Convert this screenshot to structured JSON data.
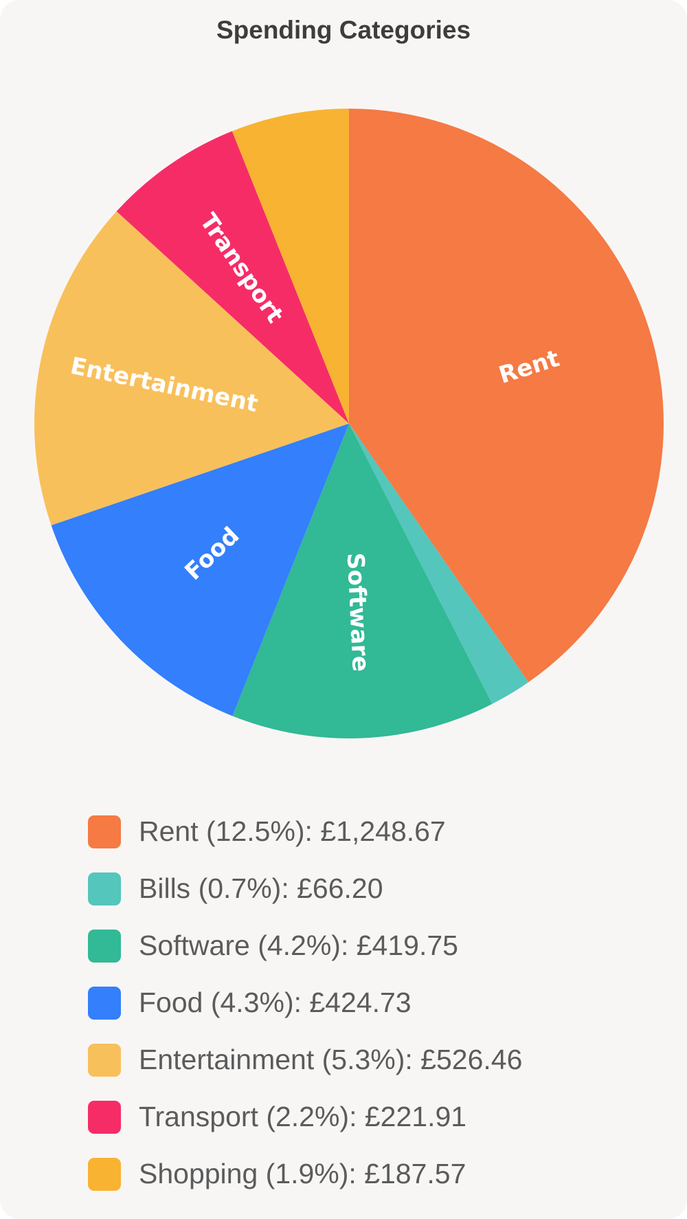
{
  "chart_data": {
    "type": "pie",
    "title": "Spending Categories",
    "slices": [
      {
        "name": "Rent",
        "value": 1248.67,
        "percent_label": "12.5%",
        "amount_label": "£1,248.67",
        "color": "#f57a44",
        "slice_label": "Rent",
        "legend_label": "Rent (12.5%): £1,248.67"
      },
      {
        "name": "Bills",
        "value": 66.2,
        "percent_label": "0.7%",
        "amount_label": "£66.20",
        "color": "#54c6bc",
        "slice_label": "",
        "legend_label": "Bills (0.7%): £66.20"
      },
      {
        "name": "Software",
        "value": 419.75,
        "percent_label": "4.2%",
        "amount_label": "£419.75",
        "color": "#32b996",
        "slice_label": "Software",
        "legend_label": "Software (4.2%): £419.75"
      },
      {
        "name": "Food",
        "value": 424.73,
        "percent_label": "4.3%",
        "amount_label": "£424.73",
        "color": "#337ffc",
        "slice_label": "Food",
        "legend_label": "Food (4.3%): £424.73"
      },
      {
        "name": "Entertainment",
        "value": 526.46,
        "percent_label": "5.3%",
        "amount_label": "£526.46",
        "color": "#f8c05b",
        "slice_label": "Entertainment",
        "legend_label": "Entertainment (5.3%): £526.46"
      },
      {
        "name": "Transport",
        "value": 221.91,
        "percent_label": "2.2%",
        "amount_label": "£221.91",
        "color": "#f62c67",
        "slice_label": "Transport",
        "legend_label": "Transport (2.2%): £221.91"
      },
      {
        "name": "Shopping",
        "value": 187.57,
        "percent_label": "1.9%",
        "amount_label": "£187.57",
        "color": "#f8b332",
        "slice_label": "",
        "legend_label": "Shopping (1.9%): £187.57"
      }
    ],
    "legend_position": "bottom",
    "start_angle": "12 o'clock",
    "direction": "clockwise"
  },
  "colors": {
    "card_background": "#f8f6f5",
    "title_text": "#3d3d3d",
    "legend_text": "#5b5b5b",
    "slice_label_text": "#ffffff"
  }
}
